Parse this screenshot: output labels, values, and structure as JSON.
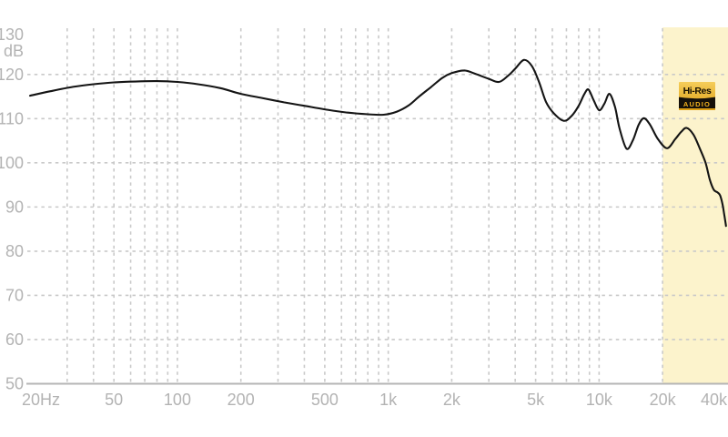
{
  "chart_data": {
    "type": "line",
    "title": "",
    "xlabel": "",
    "ylabel": "dB",
    "x_axis": {
      "scale": "log",
      "range_hz": [
        20,
        40000
      ],
      "ticks": [
        {
          "f": 20,
          "label": "20Hz"
        },
        {
          "f": 50,
          "label": "50"
        },
        {
          "f": 100,
          "label": "100"
        },
        {
          "f": 200,
          "label": "200"
        },
        {
          "f": 500,
          "label": "500"
        },
        {
          "f": 1000,
          "label": "1k"
        },
        {
          "f": 2000,
          "label": "2k"
        },
        {
          "f": 5000,
          "label": "5k"
        },
        {
          "f": 10000,
          "label": "10k"
        },
        {
          "f": 20000,
          "label": "20k"
        },
        {
          "f": 40000,
          "label": "40k"
        }
      ],
      "gridlines_hz": [
        30,
        40,
        50,
        60,
        70,
        80,
        90,
        100,
        200,
        300,
        400,
        500,
        600,
        700,
        800,
        900,
        1000,
        2000,
        3000,
        4000,
        5000,
        6000,
        7000,
        8000,
        9000,
        10000,
        20000
      ]
    },
    "y_axis": {
      "unit": "dB",
      "range_db": [
        50,
        130
      ],
      "ticks": [
        {
          "v": 130,
          "label": "130"
        },
        {
          "v": 120,
          "label": "120"
        },
        {
          "v": 110,
          "label": "110"
        },
        {
          "v": 100,
          "label": "100"
        },
        {
          "v": 90,
          "label": "90"
        },
        {
          "v": 80,
          "label": "80"
        },
        {
          "v": 70,
          "label": "70"
        },
        {
          "v": 60,
          "label": "60"
        },
        {
          "v": 50,
          "label": "50"
        }
      ],
      "gridlines_db": [
        120,
        110,
        100,
        90,
        80,
        70,
        60
      ],
      "grid": "dashed"
    },
    "series": [
      {
        "name": "frequency-response",
        "color": "#141414",
        "points": [
          [
            20,
            115.2
          ],
          [
            25,
            116.2
          ],
          [
            32,
            117.2
          ],
          [
            40,
            117.8
          ],
          [
            50,
            118.2
          ],
          [
            63,
            118.4
          ],
          [
            80,
            118.5
          ],
          [
            100,
            118.3
          ],
          [
            125,
            117.8
          ],
          [
            160,
            116.9
          ],
          [
            200,
            115.6
          ],
          [
            250,
            114.7
          ],
          [
            320,
            113.7
          ],
          [
            400,
            112.9
          ],
          [
            500,
            112.1
          ],
          [
            630,
            111.4
          ],
          [
            800,
            111.0
          ],
          [
            950,
            110.9
          ],
          [
            1100,
            111.6
          ],
          [
            1250,
            113.0
          ],
          [
            1400,
            115.0
          ],
          [
            1600,
            117.2
          ],
          [
            1800,
            119.2
          ],
          [
            2000,
            120.3
          ],
          [
            2300,
            120.9
          ],
          [
            2600,
            120.1
          ],
          [
            3000,
            119.0
          ],
          [
            3350,
            118.3
          ],
          [
            3700,
            119.7
          ],
          [
            4000,
            121.3
          ],
          [
            4400,
            123.3
          ],
          [
            4800,
            121.9
          ],
          [
            5200,
            118.2
          ],
          [
            5600,
            113.8
          ],
          [
            6100,
            111.2
          ],
          [
            6800,
            109.5
          ],
          [
            7400,
            110.6
          ],
          [
            8000,
            112.9
          ],
          [
            8500,
            115.5
          ],
          [
            8900,
            116.6
          ],
          [
            9400,
            114.3
          ],
          [
            10000,
            111.9
          ],
          [
            10600,
            113.4
          ],
          [
            11200,
            115.6
          ],
          [
            11900,
            112.6
          ],
          [
            12500,
            107.8
          ],
          [
            13500,
            103.2
          ],
          [
            14500,
            105.2
          ],
          [
            15400,
            108.6
          ],
          [
            16300,
            110.1
          ],
          [
            17400,
            108.7
          ],
          [
            19000,
            105.4
          ],
          [
            21000,
            103.3
          ],
          [
            23000,
            105.4
          ],
          [
            24500,
            107.0
          ],
          [
            26000,
            107.9
          ],
          [
            28000,
            106.4
          ],
          [
            30000,
            103.3
          ],
          [
            32000,
            100.0
          ],
          [
            33500,
            96.2
          ],
          [
            35000,
            93.9
          ],
          [
            36500,
            93.3
          ],
          [
            37500,
            92.6
          ],
          [
            38500,
            90.6
          ],
          [
            39300,
            88.0
          ],
          [
            40000,
            85.7
          ]
        ]
      }
    ],
    "hires_region": {
      "from_hz": 20000,
      "to_hz": 40000
    },
    "badge": {
      "line1": "Hi-Res",
      "line2": "AUDIO"
    }
  },
  "colors": {
    "background": "#ffffff",
    "grid": "#c9c9c9",
    "axis_line": "#b5b5b5",
    "tick_label": "#b3b3b3",
    "curve": "#141414",
    "hires_region_fill": "#fcf3cc",
    "badge_gold_top": "#f5cd59",
    "badge_gold_bottom": "#dd9f16",
    "badge_black": "#15100a",
    "badge_gold_text": "#f2b01e",
    "badge_hires_text": "#181000"
  }
}
